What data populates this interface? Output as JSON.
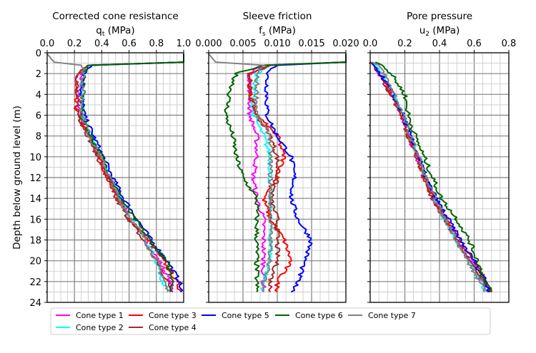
{
  "chart_data": [
    {
      "type": "line",
      "title": "Corrected cone resistance",
      "xlabel": "q",
      "xlabel_sub": "t",
      "xlabel_unit": " (MPa)",
      "xlim": [
        0,
        1.0
      ],
      "xticks": [
        "0.0",
        "0.2",
        "0.4",
        "0.6",
        "0.8",
        "1.0"
      ],
      "ylim": [
        24,
        0
      ],
      "yticks": [
        "0",
        "2",
        "4",
        "6",
        "8",
        "10",
        "12",
        "14",
        "16",
        "18",
        "20",
        "22",
        "24"
      ],
      "ylabel": "Depth below ground level (m)",
      "grid": true,
      "depths": [
        0.1,
        0.9,
        1.2,
        2,
        4,
        6,
        8,
        10,
        12,
        14,
        16,
        18,
        20,
        22,
        23
      ],
      "series": [
        {
          "name": "Cone type 1",
          "values": [
            1.0,
            1.0,
            0.3,
            0.25,
            0.23,
            0.24,
            0.3,
            0.38,
            0.45,
            0.52,
            0.62,
            0.72,
            0.82,
            0.9,
            0.92
          ]
        },
        {
          "name": "Cone type 2",
          "values": [
            1.0,
            1.0,
            0.32,
            0.27,
            0.25,
            0.26,
            0.32,
            0.4,
            0.46,
            0.53,
            0.62,
            0.72,
            0.8,
            0.85,
            0.88
          ]
        },
        {
          "name": "Cone type 3",
          "values": [
            1.0,
            1.0,
            0.3,
            0.22,
            0.2,
            0.22,
            0.3,
            0.38,
            0.44,
            0.52,
            0.6,
            0.74,
            0.85,
            0.95,
            0.98
          ]
        },
        {
          "name": "Cone type 4",
          "values": [
            1.0,
            1.0,
            0.3,
            0.23,
            0.21,
            0.23,
            0.3,
            0.37,
            0.44,
            0.5,
            0.6,
            0.7,
            0.8,
            0.88,
            0.92
          ]
        },
        {
          "name": "Cone type 5",
          "values": [
            1.0,
            1.0,
            0.33,
            0.28,
            0.25,
            0.27,
            0.34,
            0.41,
            0.48,
            0.56,
            0.66,
            0.76,
            0.88,
            0.97,
            0.98
          ]
        },
        {
          "name": "Cone type 6",
          "values": [
            1.0,
            1.0,
            0.3,
            0.27,
            0.26,
            0.25,
            0.32,
            0.4,
            0.47,
            0.54,
            0.64,
            0.75,
            0.87,
            0.93,
            0.9
          ]
        },
        {
          "name": "Cone type 7",
          "values": [
            0.0,
            0.05,
            0.25,
            0.27,
            0.26,
            0.26,
            0.31,
            0.39,
            0.46,
            0.52,
            0.62,
            0.72,
            0.8,
            0.86,
            0.88
          ]
        }
      ]
    },
    {
      "type": "line",
      "title": "Sleeve friction",
      "xlabel": "f",
      "xlabel_sub": "s",
      "xlabel_unit": " (MPa)",
      "xlim": [
        0,
        0.02
      ],
      "xticks": [
        "0.000",
        "0.005",
        "0.010",
        "0.015",
        "0.020"
      ],
      "ylim": [
        24,
        0
      ],
      "grid": true,
      "depths": [
        0.1,
        0.9,
        1.2,
        2,
        4,
        6,
        8,
        10,
        12,
        14,
        16,
        18,
        20,
        22,
        23
      ],
      "series": [
        {
          "name": "Cone type 1",
          "values": [
            0.02,
            0.02,
            0.008,
            0.006,
            0.006,
            0.006,
            0.007,
            0.007,
            0.0065,
            0.007,
            0.008,
            0.008,
            0.008,
            0.008,
            0.008
          ]
        },
        {
          "name": "Cone type 2",
          "values": [
            0.02,
            0.02,
            0.009,
            0.007,
            0.0065,
            0.0065,
            0.008,
            0.009,
            0.009,
            0.009,
            0.009,
            0.009,
            0.009,
            0.008,
            0.008
          ]
        },
        {
          "name": "Cone type 3",
          "values": [
            0.02,
            0.02,
            0.009,
            0.006,
            0.006,
            0.007,
            0.01,
            0.011,
            0.01,
            0.008,
            0.009,
            0.011,
            0.012,
            0.01,
            0.01
          ]
        },
        {
          "name": "Cone type 4",
          "values": [
            0.02,
            0.02,
            0.009,
            0.006,
            0.006,
            0.007,
            0.009,
            0.01,
            0.01,
            0.009,
            0.01,
            0.01,
            0.01,
            0.009,
            0.009
          ]
        },
        {
          "name": "Cone type 5",
          "values": [
            0.02,
            0.02,
            0.01,
            0.0085,
            0.0085,
            0.0085,
            0.01,
            0.012,
            0.0125,
            0.012,
            0.013,
            0.015,
            0.014,
            0.013,
            0.012
          ]
        },
        {
          "name": "Cone type 6",
          "values": [
            0.02,
            0.02,
            0.008,
            0.004,
            0.003,
            0.0025,
            0.0035,
            0.004,
            0.005,
            0.007,
            0.007,
            0.007,
            0.007,
            0.007,
            0.007
          ]
        },
        {
          "name": "Cone type 7",
          "values": [
            0.0,
            0.001,
            0.008,
            0.007,
            0.007,
            0.007,
            0.009,
            0.009,
            0.009,
            0.009,
            0.009,
            0.009,
            0.009,
            0.008,
            0.008
          ]
        }
      ]
    },
    {
      "type": "line",
      "title": "Pore pressure",
      "xlabel": "u",
      "xlabel_sub": "2",
      "xlabel_unit": " (MPa)",
      "xlim": [
        0,
        0.8
      ],
      "xticks": [
        "0.0",
        "0.2",
        "0.4",
        "0.6",
        "0.8"
      ],
      "ylim": [
        24,
        0
      ],
      "grid": true,
      "depths": [
        0.9,
        1.2,
        2,
        4,
        6,
        8,
        10,
        12,
        14,
        16,
        18,
        20,
        22,
        23
      ],
      "series": [
        {
          "name": "Cone type 1",
          "values": [
            0.0,
            0.02,
            0.06,
            0.12,
            0.18,
            0.22,
            0.27,
            0.31,
            0.36,
            0.43,
            0.5,
            0.58,
            0.65,
            0.68
          ]
        },
        {
          "name": "Cone type 2",
          "values": [
            0.01,
            0.03,
            0.07,
            0.13,
            0.19,
            0.23,
            0.28,
            0.32,
            0.37,
            0.43,
            0.5,
            0.57,
            0.64,
            0.67
          ]
        },
        {
          "name": "Cone type 3",
          "values": [
            0.0,
            0.02,
            0.05,
            0.12,
            0.18,
            0.22,
            0.27,
            0.31,
            0.37,
            0.44,
            0.52,
            0.6,
            0.67,
            0.7
          ]
        },
        {
          "name": "Cone type 4",
          "values": [
            0.0,
            0.02,
            0.05,
            0.12,
            0.18,
            0.22,
            0.27,
            0.31,
            0.36,
            0.43,
            0.5,
            0.57,
            0.65,
            0.68
          ]
        },
        {
          "name": "Cone type 5",
          "values": [
            0.01,
            0.02,
            0.06,
            0.13,
            0.19,
            0.23,
            0.28,
            0.32,
            0.38,
            0.45,
            0.52,
            0.6,
            0.67,
            0.69
          ]
        },
        {
          "name": "Cone type 6",
          "values": [
            0.03,
            0.07,
            0.12,
            0.2,
            0.22,
            0.26,
            0.31,
            0.36,
            0.41,
            0.5,
            0.57,
            0.62,
            0.66,
            0.7
          ]
        },
        {
          "name": "Cone type 7",
          "values": [
            0.01,
            0.05,
            0.08,
            0.14,
            0.19,
            0.23,
            0.28,
            0.32,
            0.37,
            0.43,
            0.5,
            0.56,
            0.63,
            0.66
          ]
        }
      ]
    }
  ],
  "legend": [
    {
      "label": "Cone type 1",
      "color": "#ff00ff"
    },
    {
      "label": "Cone type 2",
      "color": "#00ffff"
    },
    {
      "label": "Cone type 3",
      "color": "#ff0000"
    },
    {
      "label": "Cone type 4",
      "color": "#a52a2a"
    },
    {
      "label": "Cone type 5",
      "color": "#0000ff"
    },
    {
      "label": "Cone type 6",
      "color": "#006400"
    },
    {
      "label": "Cone type 7",
      "color": "#808080"
    }
  ]
}
